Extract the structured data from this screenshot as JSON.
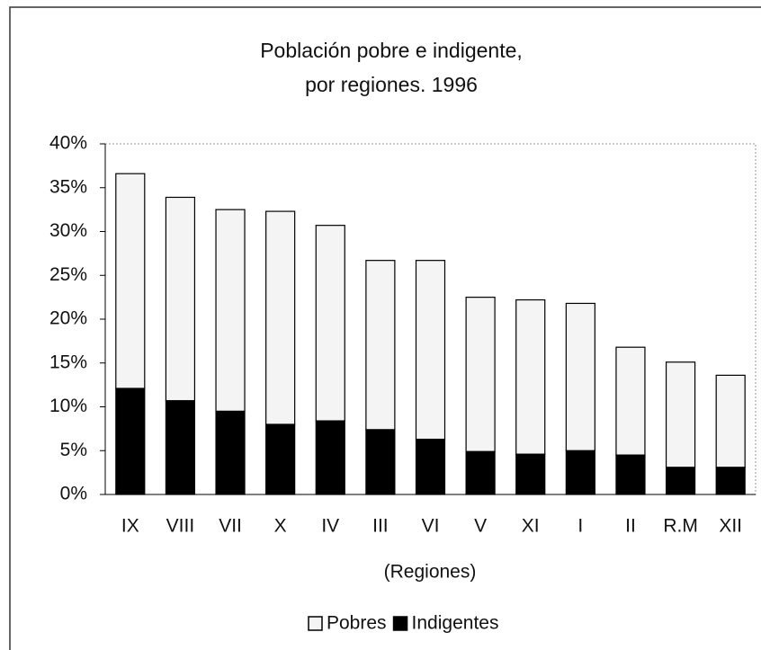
{
  "chart_data": {
    "type": "stacked_bar",
    "title": [
      "Población pobre e indigente,",
      "por regiones. 1996"
    ],
    "x_label": "(Regiones)",
    "categories": [
      "IX",
      "VIII",
      "VII",
      "X",
      "IV",
      "III",
      "VI",
      "V",
      "XI",
      "I",
      "II",
      "R.M",
      "XII"
    ],
    "series": [
      {
        "name": "Pobres",
        "color": "#f4f4f4",
        "values": [
          24.5,
          23.2,
          23.0,
          24.3,
          22.3,
          19.3,
          20.4,
          17.6,
          17.6,
          16.8,
          12.3,
          12.0,
          10.5
        ]
      },
      {
        "name": "Indigentes",
        "color": "#000000",
        "values": [
          12.1,
          10.7,
          9.5,
          8.0,
          8.4,
          7.4,
          6.3,
          4.9,
          4.6,
          5.0,
          4.5,
          3.1,
          3.1
        ]
      }
    ],
    "ylim": [
      0,
      40
    ],
    "yticks": [
      {
        "value": 0,
        "label": "0%"
      },
      {
        "value": 5,
        "label": "5%"
      },
      {
        "value": 10,
        "label": "10%"
      },
      {
        "value": 15,
        "label": "15%"
      },
      {
        "value": 20,
        "label": "20%"
      },
      {
        "value": 25,
        "label": "25%"
      },
      {
        "value": 30,
        "label": "30%"
      },
      {
        "value": 35,
        "label": "35%"
      },
      {
        "value": 40,
        "label": "40%"
      }
    ],
    "grid": false,
    "legend": "bottom"
  }
}
